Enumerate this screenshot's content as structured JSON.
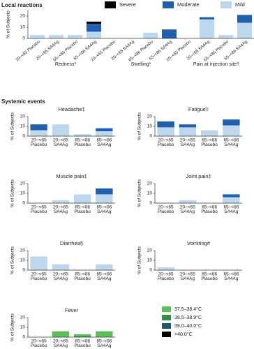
{
  "sections": [
    "Local reactions",
    "Systemic events"
  ],
  "chart_data": [
    {
      "type": "bar",
      "ylabel": "% of Subjects",
      "legend": "top",
      "groups": [
        "Redness*",
        "Swelling*",
        "Pain at injection site†"
      ],
      "categories": [
        "20–<65 Placebo",
        "20–<65 SA4Ag",
        "65–<86 Placebo",
        "65–<86 SA4Ag",
        "20–<65 Placebo",
        "20–<65 SA4Ag",
        "65–<86 Placebo",
        "65–<86 SA4Ag",
        "20–<65 Placebo",
        "20–<65 SA4Ag",
        "65–<86 Placebo",
        "65–<86 SA4Ag"
      ],
      "series": [
        {
          "name": "Severe",
          "color": "#000000",
          "values": [
            0,
            0,
            0,
            2,
            0,
            0,
            0,
            0,
            0,
            0,
            0,
            0
          ]
        },
        {
          "name": "Moderate",
          "color": "#1f5fae",
          "values": [
            0,
            0,
            0,
            7,
            0,
            0,
            0,
            8,
            0,
            2,
            0,
            7
          ]
        },
        {
          "name": "Mild",
          "color": "#bcd7ee",
          "values": [
            3,
            3,
            3,
            6,
            0,
            0,
            5,
            0,
            0,
            17,
            3,
            14
          ]
        }
      ],
      "ylim": [
        0,
        25
      ],
      "yticks": [
        0,
        10,
        20
      ]
    },
    {
      "type": "bar",
      "title": "Headache‡",
      "ylabel": "% of Subjects",
      "categories": [
        [
          "20–<65",
          "Placebo"
        ],
        [
          "20–<65",
          "SA4Ag"
        ],
        [
          "65–<86",
          "Placebo"
        ],
        [
          "65–<86",
          "SA4Ag"
        ]
      ],
      "series": [
        {
          "color": "#1f5fae",
          "values": [
            6,
            0,
            0,
            3
          ]
        },
        {
          "color": "#bcd7ee",
          "values": [
            6,
            12,
            2,
            5
          ]
        }
      ],
      "ylim": [
        0,
        20
      ],
      "yticks": [
        0,
        10,
        20
      ]
    },
    {
      "type": "bar",
      "title": "Fatigue‡",
      "ylabel": "% of Subjects",
      "categories": [
        [
          "20–<65",
          "Placebo"
        ],
        [
          "20–<65",
          "SA4Ag"
        ],
        [
          "65–<86",
          "Placebo"
        ],
        [
          "65–<86",
          "SA4Ag"
        ]
      ],
      "series": [
        {
          "color": "#1f5fae",
          "values": [
            6,
            3,
            0,
            6
          ]
        },
        {
          "color": "#bcd7ee",
          "values": [
            9,
            9,
            6,
            11
          ]
        }
      ],
      "ylim": [
        0,
        20
      ],
      "yticks": [
        0,
        10,
        20
      ]
    },
    {
      "type": "bar",
      "title": "Muscle pain‡",
      "ylabel": "% of Subjects",
      "categories": [
        [
          "20–<65",
          "Placebo"
        ],
        [
          "20–<65",
          "SA4Ag"
        ],
        [
          "65–<86",
          "Placebo"
        ],
        [
          "65–<86",
          "SA4Ag"
        ]
      ],
      "series": [
        {
          "color": "#1f5fae",
          "values": [
            0,
            0,
            0,
            6
          ]
        },
        {
          "color": "#bcd7ee",
          "values": [
            0,
            3,
            9,
            9
          ]
        }
      ],
      "ylim": [
        0,
        20
      ],
      "yticks": [
        0,
        10,
        20
      ]
    },
    {
      "type": "bar",
      "title": "Joint pain‡",
      "ylabel": "% of Subjects",
      "categories": [
        [
          "20–<65",
          "Placebo"
        ],
        [
          "20–<65",
          "SA4Ag"
        ],
        [
          "65–<86",
          "Placebo"
        ],
        [
          "65–<86",
          "SA4Ag"
        ]
      ],
      "series": [
        {
          "color": "#1f5fae",
          "values": [
            0,
            0,
            0,
            3
          ]
        },
        {
          "color": "#bcd7ee",
          "values": [
            0,
            3,
            0,
            6
          ]
        }
      ],
      "ylim": [
        0,
        20
      ],
      "yticks": [
        0,
        10,
        20
      ]
    },
    {
      "type": "bar",
      "title": "Diarrhea§",
      "ylabel": "% of Subjects",
      "categories": [
        [
          "20–<65",
          "Placebo"
        ],
        [
          "20–<65",
          "SA4Ag"
        ],
        [
          "65–<86",
          "Placebo"
        ],
        [
          "65–<86",
          "SA4Ag"
        ]
      ],
      "series": [
        {
          "color": "#bcd7ee",
          "values": [
            14,
            6,
            0,
            6
          ]
        }
      ],
      "ylim": [
        0,
        20
      ],
      "yticks": [
        0,
        10,
        20
      ]
    },
    {
      "type": "bar",
      "title": "Vomiting#",
      "ylabel": "% of Subjects",
      "categories": [
        [
          "20–<65",
          "Placebo"
        ],
        [
          "20–<65",
          "SA4Ag"
        ],
        [
          "65–<86",
          "Placebo"
        ],
        [
          "65–<86",
          "SA4Ag"
        ]
      ],
      "series": [
        {
          "color": "#bcd7ee",
          "values": [
            3,
            0,
            0,
            0
          ]
        }
      ],
      "ylim": [
        0,
        20
      ],
      "yticks": [
        0,
        10,
        20
      ]
    },
    {
      "type": "bar",
      "title": "Fever",
      "ylabel": "% of Subjects",
      "legend": "right",
      "categories": [
        [
          "20–<65",
          "Placebo"
        ],
        [
          "20–<65",
          "SA4Ag"
        ],
        [
          "65–<86",
          "Placebo"
        ],
        [
          "65–<86",
          "SA4Ag"
        ]
      ],
      "series": [
        {
          "name": "37.5–38.4°C",
          "color": "#5cbf5a",
          "values": [
            0,
            6,
            2,
            6
          ]
        },
        {
          "name": "38.5–38.9°C",
          "color": "#2e8f45",
          "values": [
            0,
            0,
            1,
            0
          ]
        },
        {
          "name": "39.0–40.0°C",
          "color": "#1c5a68",
          "values": [
            0,
            0,
            0,
            0
          ]
        },
        {
          "name": ">40.0°C",
          "color": "#000000",
          "values": [
            0,
            0,
            0,
            0
          ]
        }
      ],
      "ylim": [
        0,
        20
      ],
      "yticks": [
        0,
        10,
        20
      ]
    }
  ]
}
